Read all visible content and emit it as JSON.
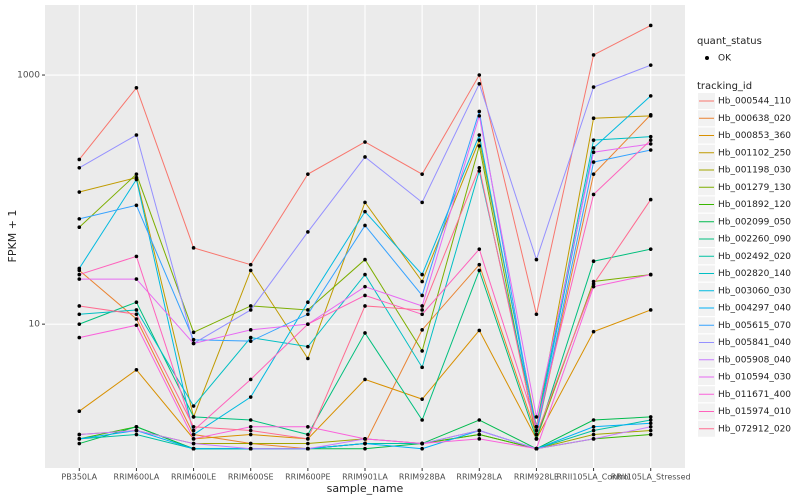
{
  "chart_data": {
    "type": "line",
    "log_scale": true,
    "grid": true,
    "x_label": "sample_name",
    "y_label": "FPKM + 1",
    "categories": [
      "PB350LA",
      "RRIM600LA",
      "RRIM600LE",
      "RRIM600SE",
      "RRIM600PE",
      "RRIM901LA",
      "RRIM928BA",
      "RRIM928LA",
      "RRIM928LE",
      "RRII105LA_Control",
      "RRII105LA_Stressed"
    ],
    "ylim": [
      0.7,
      3650
    ],
    "yticks": [
      10,
      1000
    ],
    "point_legend": {
      "title": "quant_status",
      "label": "OK"
    },
    "legend_title": "tracking_id",
    "series": [
      {
        "name": "Hb_000544_110",
        "color": "#F8766D",
        "values": [
          210,
          790,
          41,
          30,
          160,
          290,
          160,
          1000,
          12,
          1450,
          2500
        ]
      },
      {
        "name": "Hb_000638_020",
        "color": "#EA8331",
        "values": [
          27,
          11,
          1.3,
          1.1,
          1.0,
          1.1,
          9,
          30,
          1.3,
          160,
          480
        ]
      },
      {
        "name": "Hb_000853_360",
        "color": "#D89000",
        "values": [
          2.0,
          4.3,
          1.2,
          1.3,
          1.2,
          3.6,
          2.5,
          8.9,
          1.2,
          8.7,
          13
        ]
      },
      {
        "name": "Hb_001102_250",
        "color": "#C09B00",
        "values": [
          115,
          150,
          1.8,
          27,
          5.3,
          95,
          22,
          300,
          1.5,
          450,
          470
        ]
      },
      {
        "name": "Hb_001198_030",
        "color": "#A3A500",
        "values": [
          1.3,
          1.4,
          1.1,
          1.1,
          1.1,
          1.2,
          1.1,
          1.3,
          1.0,
          1.3,
          1.4
        ]
      },
      {
        "name": "Hb_001279_130",
        "color": "#7CAE00",
        "values": [
          60,
          160,
          8.6,
          14,
          13,
          33,
          6.1,
          270,
          1.2,
          22,
          25
        ]
      },
      {
        "name": "Hb_001892_120",
        "color": "#39B600",
        "values": [
          1.2,
          1.5,
          1.0,
          1.0,
          1.0,
          1.1,
          1.1,
          1.3,
          1.0,
          1.2,
          1.3
        ]
      },
      {
        "name": "Hb_002099_050",
        "color": "#00BB4E",
        "values": [
          1.1,
          1.5,
          1.0,
          1.0,
          1.0,
          1.0,
          1.1,
          1.7,
          1.0,
          1.7,
          1.8
        ]
      },
      {
        "name": "Hb_002260_090",
        "color": "#00BF7D",
        "values": [
          10,
          15,
          1.8,
          1.7,
          1.3,
          8.5,
          1.7,
          27,
          1.2,
          32,
          40
        ]
      },
      {
        "name": "Hb_002492_020",
        "color": "#00C1A3",
        "values": [
          1.2,
          1.3,
          1.0,
          1.0,
          1.0,
          1.1,
          1.1,
          1.4,
          1.0,
          1.4,
          1.7
        ]
      },
      {
        "name": "Hb_002820_140",
        "color": "#00BFC4",
        "values": [
          12,
          13,
          2.2,
          7.8,
          6.6,
          25,
          4.5,
          170,
          1.5,
          300,
          320
        ]
      },
      {
        "name": "Hb_003060_030",
        "color": "#00BAE0",
        "values": [
          28,
          145,
          1.3,
          2.6,
          15,
          80,
          25,
          330,
          1.4,
          260,
          680
        ]
      },
      {
        "name": "Hb_004297_040",
        "color": "#00B0F6",
        "values": [
          1.2,
          1.4,
          1.0,
          1.0,
          1.0,
          1.1,
          1.0,
          1.4,
          1.0,
          1.5,
          1.6
        ]
      },
      {
        "name": "Hb_005615_070",
        "color": "#35A2FF",
        "values": [
          70,
          90,
          7.5,
          7.3,
          12,
          62,
          17,
          510,
          1.3,
          200,
          250
        ]
      },
      {
        "name": "Hb_005841_040",
        "color": "#9590FF",
        "values": [
          180,
          330,
          7,
          13,
          55,
          220,
          95,
          850,
          33,
          800,
          1200
        ]
      },
      {
        "name": "Hb_005908_040",
        "color": "#C77CFF",
        "values": [
          1.3,
          1.4,
          1.1,
          1.0,
          1.0,
          1.2,
          1.1,
          1.4,
          1.0,
          1.2,
          1.5
        ]
      },
      {
        "name": "Hb_010594_030",
        "color": "#E76BF3",
        "values": [
          23,
          23,
          7,
          9,
          10,
          20,
          14,
          470,
          1.8,
          240,
          280
        ]
      },
      {
        "name": "Hb_011671_400",
        "color": "#FA62DB",
        "values": [
          7.8,
          9.8,
          1.2,
          1.5,
          1.5,
          1.2,
          1.1,
          1.2,
          1.0,
          20,
          25
        ]
      },
      {
        "name": "Hb_015974_010",
        "color": "#FF62BC",
        "values": [
          25,
          35,
          1.4,
          3.6,
          10,
          17,
          12,
          40,
          1.5,
          110,
          300
        ]
      },
      {
        "name": "Hb_072912_020",
        "color": "#FF6C91",
        "values": [
          14,
          12,
          1.5,
          1.4,
          1.2,
          14,
          13,
          180,
          1.3,
          21,
          100
        ]
      }
    ]
  }
}
